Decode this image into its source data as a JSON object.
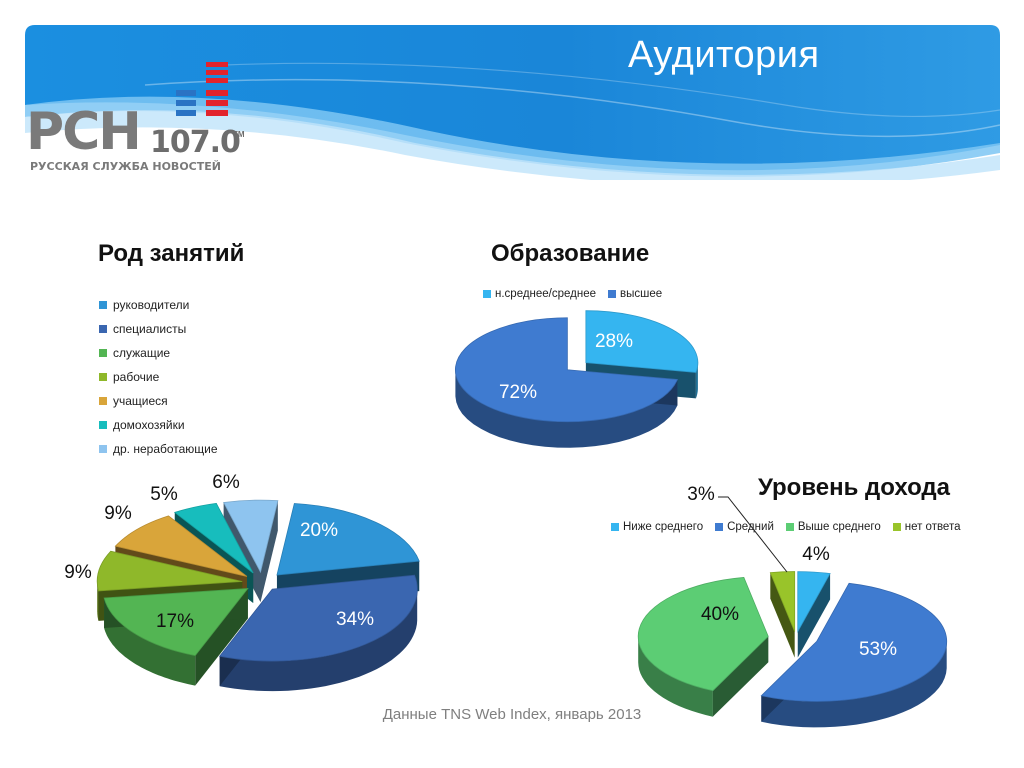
{
  "slide_title": "Аудитория",
  "logo": {
    "main": "РСН",
    "frequency": "107.0",
    "fm": "FM",
    "subtitle": "РУССКАЯ СЛУЖБА НОВОСТЕЙ"
  },
  "footer": "Данные TNS Web Index, январь 2013",
  "colors": {
    "header_blue": "#1e90e0",
    "header_light": "#9fd5f7"
  },
  "chart_data": [
    {
      "type": "pie",
      "title": "Род занятий",
      "legend_position": "left",
      "categories": [
        "руководители",
        "специалисты",
        "служащие",
        "рабочие",
        "учащиеся",
        "домохозяйки",
        "др. неработающие"
      ],
      "values": [
        20,
        34,
        17,
        9,
        9,
        5,
        6
      ],
      "labels": [
        "20%",
        "34%",
        "17%",
        "9%",
        "9%",
        "5%",
        "6%"
      ],
      "colors": [
        "#2f95d6",
        "#3a66b0",
        "#53b553",
        "#8fb82a",
        "#d9a53a",
        "#17bdbd",
        "#8ec4ef"
      ]
    },
    {
      "type": "pie",
      "title": "Образование",
      "legend_position": "top",
      "categories": [
        "н.среднее/среднее",
        "высшее"
      ],
      "values": [
        28,
        72
      ],
      "labels": [
        "28%",
        "72%"
      ],
      "colors": [
        "#35b5f0",
        "#3f7bd0"
      ]
    },
    {
      "type": "pie",
      "title": "Уровень дохода",
      "legend_position": "top",
      "categories": [
        "Ниже среднего",
        "Средний",
        "Выше среднего",
        "нет ответа"
      ],
      "values": [
        4,
        53,
        40,
        3
      ],
      "labels": [
        "4%",
        "53%",
        "40%",
        "3%"
      ],
      "colors": [
        "#35b5f0",
        "#3f7bd0",
        "#5ccd74",
        "#99c42a"
      ]
    }
  ]
}
